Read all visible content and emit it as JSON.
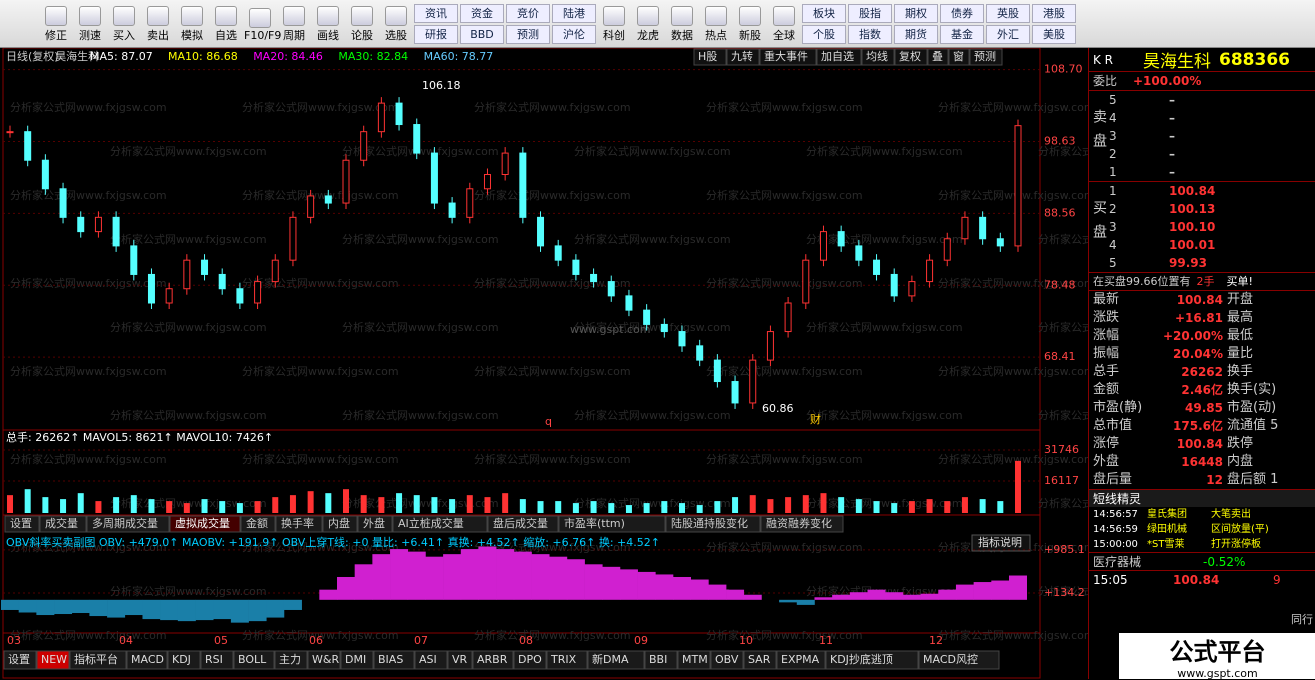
{
  "toolbar": {
    "left": [
      "修正",
      "测速",
      "买入",
      "卖出",
      "模拟",
      "自选",
      "F10/F9",
      "周期",
      "画线",
      "论股",
      "选股"
    ],
    "grid": [
      [
        "资讯",
        "研报"
      ],
      [
        "资金",
        "BBD"
      ],
      [
        "竞价",
        "预测"
      ],
      [
        "陆港",
        "沪伦"
      ]
    ],
    "mid": [
      "科创",
      "龙虎",
      "数据",
      "热点",
      "新股",
      "全球"
    ],
    "grid2": [
      [
        "板块",
        "个股"
      ],
      [
        "股指",
        "指数"
      ],
      [
        "期权",
        "期货"
      ],
      [
        "债券",
        "基金"
      ],
      [
        "英股",
        "外汇"
      ],
      [
        "港股",
        "美股"
      ]
    ]
  },
  "header": {
    "items": [
      "日线(复权)",
      "昊海生科",
      "MA5: 87.07",
      "MA10: 86.68",
      "MA20: 84.46",
      "MA30: 82.84",
      "MA60: 78.77"
    ],
    "buttons": [
      "H股",
      "九转",
      "重大事件",
      "加自选",
      "均线",
      "复权",
      "叠",
      "窗",
      "预测"
    ]
  },
  "watermark": "分析家公式网www.fxjgsw.com",
  "watermark2": "www.gspt.com",
  "price": {
    "ylim": [
      58.21,
      109.2
    ],
    "yticks": [
      {
        "value": 108.7,
        "label": "108.70"
      },
      98.63,
      88.56,
      78.48,
      68.41
    ],
    "values": [
      100,
      96,
      92,
      88,
      86,
      88,
      84,
      80,
      76,
      78,
      82,
      80,
      78,
      76,
      79,
      82,
      88,
      91,
      90,
      96,
      100,
      104,
      101,
      97,
      90,
      88,
      92,
      94,
      97,
      88,
      84,
      82,
      80,
      79,
      77,
      75,
      73,
      72,
      70,
      68,
      65,
      62,
      68,
      72,
      76,
      82,
      86,
      84,
      82,
      80,
      77,
      79,
      82,
      85,
      88,
      85,
      84,
      100.84
    ],
    "annotations": [
      "106.18",
      "60.86",
      "q",
      "财"
    ]
  },
  "volume": {
    "header": "总手: 26262↑ MAVOL5: 8621↑ MAVOL10: 7426↑",
    "ylim": [
      0,
      33763
    ],
    "yticks": [
      31746,
      16117
    ],
    "values": [
      9000,
      12000,
      8000,
      7000,
      10000,
      6000,
      8000,
      9000,
      7000,
      6000,
      5000,
      7000,
      6000,
      5000,
      6000,
      8000,
      9000,
      11000,
      10000,
      12000,
      9000,
      8000,
      10000,
      9000,
      8000,
      7000,
      9000,
      8000,
      10000,
      7000,
      6000,
      6000,
      5000,
      6000,
      5000,
      4000,
      5000,
      6000,
      5000,
      4000,
      6000,
      8000,
      9000,
      7000,
      8000,
      9000,
      10000,
      8000,
      7000,
      6000,
      5000,
      6000,
      7000,
      6000,
      8000,
      7000,
      6000,
      26262
    ]
  },
  "tabs": [
    "设置",
    "成交量",
    "多周期成交量",
    "虚拟成交量",
    "金额",
    "换手率",
    "内盘",
    "外盘",
    "AI立桩成交量",
    "盘后成交量",
    "市盈率(ttm)",
    "陆股通持股变化",
    "融资融券变化"
  ],
  "obv": {
    "header": "OBV斜率买卖副图 OBV: +479.0↑ MAOBV: +191.9↑ OBV上穿T线: +0 量比: +6.41↑ 真换: +4.52↑ 缩放: +6.76↑ 换: +4.52↑",
    "button": "指标说明",
    "ylim": [
      -654,
      1317
    ],
    "yticks": [
      {
        "value": 985.1,
        "label": "+985.1"
      },
      {
        "value": 134.2,
        "label": "+134.2"
      }
    ],
    "values": [
      -200,
      -250,
      -300,
      -280,
      -260,
      -320,
      -350,
      -300,
      -380,
      -400,
      -420,
      -400,
      -380,
      -450,
      -420,
      -350,
      -200,
      0,
      200,
      450,
      700,
      900,
      1000,
      950,
      850,
      900,
      1000,
      1050,
      1000,
      950,
      900,
      850,
      800,
      700,
      650,
      600,
      550,
      500,
      450,
      400,
      300,
      200,
      100,
      0,
      -50,
      -100,
      50,
      100,
      150,
      200,
      150,
      100,
      120,
      200,
      300,
      350,
      380,
      479
    ]
  },
  "months": [
    "03",
    "04",
    "05",
    "06",
    "07",
    "08",
    "09",
    "10",
    "11",
    "12"
  ],
  "bottom_tabs": [
    "设置",
    "NEW",
    "指标平台",
    "MACD",
    "KDJ",
    "RSI",
    "BOLL",
    "主力",
    "W&R",
    "DMI",
    "BIAS",
    "ASI",
    "VR",
    "ARBR",
    "DPO",
    "TRIX",
    "新DMA",
    "BBI",
    "MTM",
    "OBV",
    "SAR",
    "EXPMA",
    "KDJ抄底逃顶",
    "MACD风控"
  ],
  "panel": {
    "kr": "K R",
    "name": "昊海生科",
    "code": "688366",
    "weibi": "委比",
    "weibi_value": "+100.00%",
    "sell_label": "卖盘",
    "buy_label": "买盘",
    "sell": [
      [
        "5",
        "–"
      ],
      [
        "4",
        "–"
      ],
      [
        "3",
        "–"
      ],
      [
        "2",
        "–"
      ],
      [
        "1",
        "–"
      ]
    ],
    "buy": [
      [
        "1",
        "100.84"
      ],
      [
        "2",
        "100.13"
      ],
      [
        "3",
        "100.10"
      ],
      [
        "4",
        "100.01"
      ],
      [
        "5",
        "99.93"
      ]
    ],
    "notice": "在买盘99.66位置有",
    "notice_qty": "2手",
    "notice_tail": "买单!",
    "stats": [
      [
        "最新",
        "100.84",
        "开盘"
      ],
      [
        "涨跌",
        "+16.81",
        "最高"
      ],
      [
        "涨幅",
        "+20.00%",
        "最低"
      ],
      [
        "振幅",
        "20.04%",
        "量比"
      ],
      [
        "总手",
        "26262",
        "换手"
      ],
      [
        "金额",
        "2.46亿",
        "换手(实)"
      ],
      [
        "市盈(静)",
        "49.85",
        "市盈(动)"
      ],
      [
        "总市值",
        "175.6亿",
        "流通值 5"
      ],
      [
        "涨停",
        "100.84",
        "跌停"
      ],
      [
        "外盘",
        "16448",
        "内盘"
      ],
      [
        "盘后量",
        "12",
        "盘后额 1"
      ]
    ],
    "alerts_title": "短线精灵",
    "alerts": [
      [
        "14:56:57",
        "皇氏集团",
        "大笔卖出"
      ],
      [
        "14:56:59",
        "绿田机械",
        "区间放量(平)"
      ],
      [
        "15:00:00",
        "*ST雪莱",
        "打开涨停板"
      ]
    ],
    "sector": "医疗器械",
    "sector_value": "-0.52%",
    "time": "15:05",
    "last": "100.84",
    "last_qty": "9",
    "logo": "公式平台",
    "logo_url": "www.gspt.com",
    "side_label": "同行"
  }
}
